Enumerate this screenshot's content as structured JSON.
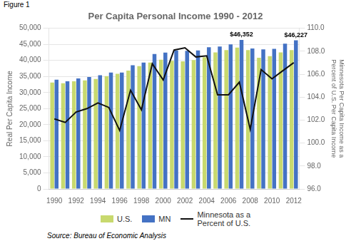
{
  "chart_data": {
    "type": "bar",
    "title": "Per Capita Personal Income 1990 - 2012",
    "figure_label": "Figure 1",
    "source_text": "Source: Bureau of Economic Analysis",
    "categories": [
      "1990",
      null,
      "1992",
      null,
      "1994",
      null,
      "1996",
      null,
      "1998",
      null,
      "2000",
      null,
      "2002",
      null,
      "2004",
      null,
      "2006",
      null,
      "2008",
      null,
      "2010",
      null,
      "2012"
    ],
    "series": [
      {
        "name": "U.S.",
        "color": "#c8d96e",
        "values": [
          33100,
          32900,
          33500,
          33800,
          34200,
          35100,
          35800,
          36800,
          38200,
          39300,
          40200,
          39900,
          39700,
          40100,
          41000,
          42500,
          43200,
          44000,
          43200,
          40800,
          41300,
          42500,
          43200
        ]
      },
      {
        "name": "MN",
        "color": "#4472c4",
        "values": [
          34000,
          33500,
          34400,
          34800,
          35400,
          36200,
          36200,
          38500,
          39300,
          42000,
          42400,
          43100,
          43000,
          43100,
          44100,
          44300,
          45000,
          46352,
          43700,
          43400,
          43600,
          45200,
          46227
        ]
      },
      {
        "name": "Minnesota as a\nPercent of U.S.",
        "type": "line",
        "color": "#111111",
        "axis": "y2",
        "values": [
          102.1,
          101.8,
          102.7,
          103.0,
          103.5,
          103.1,
          101.1,
          104.6,
          102.9,
          106.9,
          105.5,
          108.1,
          108.3,
          107.5,
          107.6,
          104.2,
          104.2,
          105.3,
          101.2,
          106.4,
          105.6,
          106.3,
          107.0
        ]
      }
    ],
    "ylabel": "Real Per Capita Income",
    "y2label": "Minnesota Per Capita Income as a\nPercent of U.S. Per Capita Income",
    "ylim": [
      0,
      50000
    ],
    "yticks": [
      0,
      {
        "value": 5000,
        "label": "5,000"
      },
      {
        "value": 10000,
        "label": "10,000"
      },
      {
        "value": 15000,
        "label": "15,000"
      },
      {
        "value": 20000,
        "label": "20,000"
      },
      {
        "value": 25000,
        "label": "25,000"
      },
      {
        "value": 30000,
        "label": "30,000"
      },
      {
        "value": 35000,
        "label": "35,000"
      },
      {
        "value": 40000,
        "label": "40,000"
      },
      {
        "value": 45000,
        "label": "45,000"
      },
      {
        "value": 50000,
        "label": "50,000"
      }
    ],
    "y2lim": [
      96.0,
      110.0
    ],
    "y2ticks": [
      {
        "value": 96,
        "label": "96.0"
      },
      {
        "value": 98,
        "label": "98.0"
      },
      {
        "value": 100,
        "label": "100.0"
      },
      {
        "value": 102,
        "label": "102.0"
      },
      {
        "value": 104,
        "label": "104.0"
      },
      {
        "value": 106,
        "label": "106.0"
      },
      {
        "value": 108,
        "label": "108.0"
      },
      {
        "value": 110,
        "label": "110.0"
      }
    ],
    "grid": true,
    "legend": "bottom",
    "annotations": [
      {
        "text": "$46,352",
        "series": "MN",
        "value": 46352
      },
      {
        "text": "$46,227",
        "series": "MN",
        "value": 46227
      }
    ]
  }
}
